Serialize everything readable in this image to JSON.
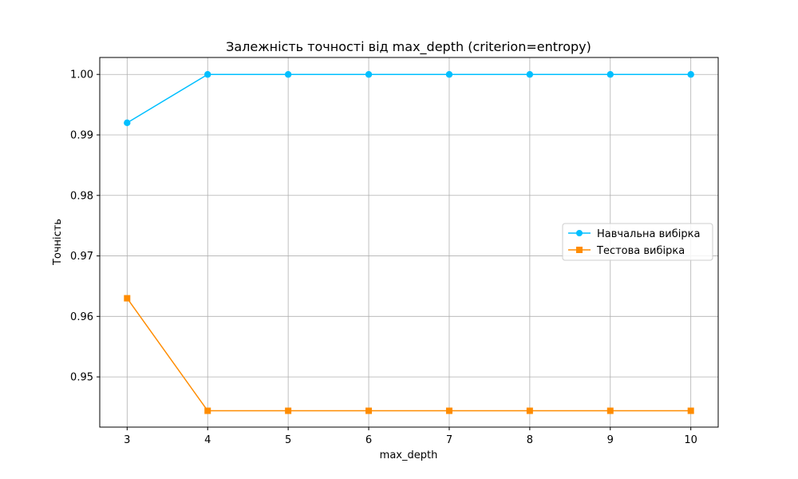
{
  "chart_data": {
    "type": "line",
    "title": "Залежність точності від max_depth (criterion=entropy)",
    "xlabel": "max_depth",
    "ylabel": "Точність",
    "x": [
      3,
      4,
      5,
      6,
      7,
      8,
      9,
      10
    ],
    "x_ticks": [
      "3",
      "4",
      "5",
      "6",
      "7",
      "8",
      "9",
      "10"
    ],
    "y_ticks": [
      "0.95",
      "0.96",
      "0.97",
      "0.98",
      "0.99",
      "1.00"
    ],
    "y_tick_values": [
      0.95,
      0.96,
      0.97,
      0.98,
      0.99,
      1.0
    ],
    "xlim": [
      2.66,
      10.34
    ],
    "ylim": [
      0.9417,
      1.0028
    ],
    "grid": true,
    "legend_position": "center-right",
    "series": [
      {
        "name": "Навчальна вибірка",
        "color": "#00bfff",
        "marker": "circle",
        "values": [
          0.992,
          1.0,
          1.0,
          1.0,
          1.0,
          1.0,
          1.0,
          1.0
        ]
      },
      {
        "name": "Тестова вибірка",
        "color": "#ff8c00",
        "marker": "square",
        "values": [
          0.963,
          0.9444,
          0.9444,
          0.9444,
          0.9444,
          0.9444,
          0.9444,
          0.9444
        ]
      }
    ]
  }
}
